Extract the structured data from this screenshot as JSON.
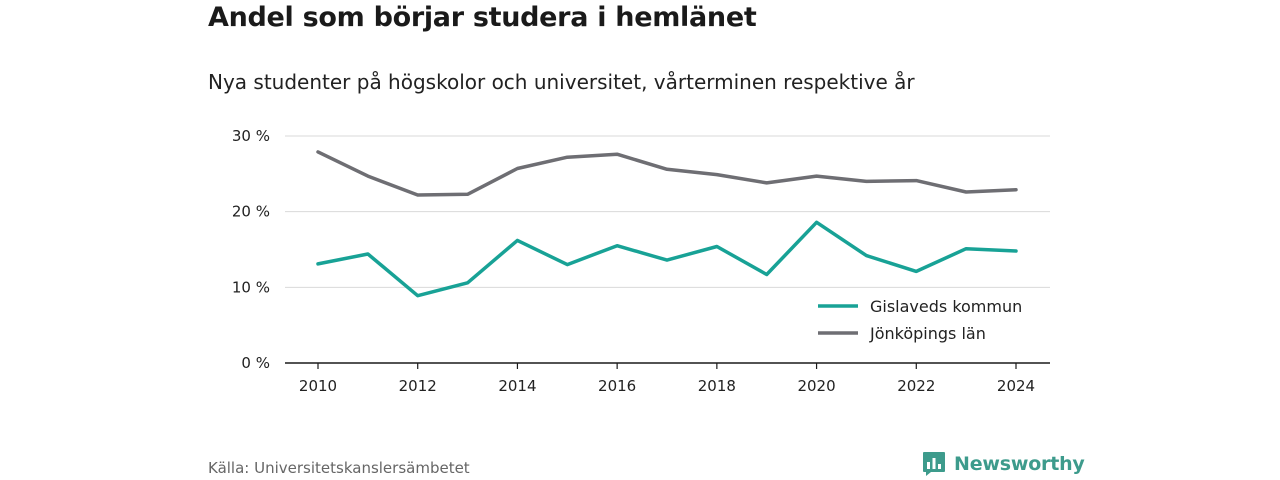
{
  "header": {
    "title": "Andel som börjar studera i hemlänet",
    "subtitle": "Nya studenter på högskolor och universitet, vårterminen respektive år"
  },
  "footer": {
    "source": "Källa: Universitetskanslersämbetet",
    "brand": "Newsworthy",
    "brand_color": "#3d9b8c",
    "brand_icon": "bar-chart-speech-icon"
  },
  "chart_data": {
    "type": "line",
    "x": [
      2010,
      2011,
      2012,
      2013,
      2014,
      2015,
      2016,
      2017,
      2018,
      2019,
      2020,
      2021,
      2022,
      2023,
      2024
    ],
    "x_ticks": [
      "2010",
      "2012",
      "2014",
      "2016",
      "2018",
      "2020",
      "2022",
      "2024"
    ],
    "y_ticks": [
      "0 %",
      "10 %",
      "20 %",
      "30 %"
    ],
    "ylim": [
      0,
      30
    ],
    "grid": true,
    "legend_position": "bottom-right",
    "series": [
      {
        "name": "Gislaveds kommun",
        "color": "#18a296",
        "values": [
          13.1,
          14.4,
          8.9,
          10.6,
          16.2,
          13.0,
          15.5,
          13.6,
          15.4,
          11.7,
          18.6,
          14.2,
          12.1,
          15.1,
          14.8
        ]
      },
      {
        "name": "Jönköpings län",
        "color": "#6e6e73",
        "values": [
          27.9,
          24.7,
          22.2,
          22.3,
          25.7,
          27.2,
          27.6,
          25.6,
          24.9,
          23.8,
          24.7,
          24.0,
          24.1,
          22.6,
          22.9
        ]
      }
    ]
  }
}
